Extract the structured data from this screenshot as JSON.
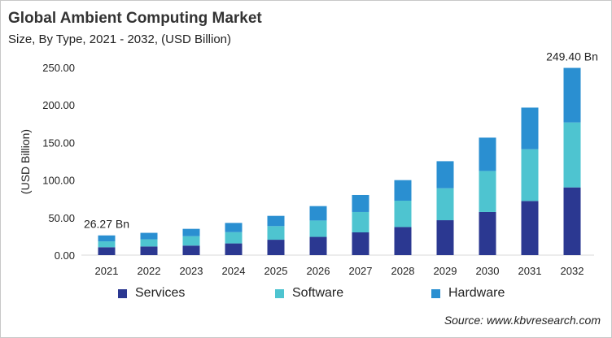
{
  "chart_data": {
    "type": "bar",
    "stacked": true,
    "title": "Global Ambient Computing Market",
    "subtitle": "Size, By Type, 2021 - 2032, (USD Billion)",
    "ylabel": "(USD Billion)",
    "xlabel": "",
    "ylim": [
      0,
      250
    ],
    "yticks": [
      "0.00",
      "50.00",
      "100.00",
      "150.00",
      "200.00",
      "250.00"
    ],
    "grid": false,
    "legend_position": "bottom",
    "categories": [
      "2021",
      "2022",
      "2023",
      "2024",
      "2025",
      "2026",
      "2027",
      "2028",
      "2029",
      "2030",
      "2031",
      "2032"
    ],
    "series": [
      {
        "name": "Services",
        "color": "#2b3891",
        "values": [
          10.5,
          11.5,
          12.7,
          15.6,
          20.5,
          24.3,
          30.3,
          37.4,
          46.5,
          57.4,
          72.1,
          90.2
        ]
      },
      {
        "name": "Software",
        "color": "#4ec4d0",
        "values": [
          7.8,
          9.5,
          12.5,
          15.0,
          18.1,
          21.8,
          27.1,
          35.1,
          42.6,
          54.7,
          68.9,
          86.5
        ]
      },
      {
        "name": "Hardware",
        "color": "#2a8fd1",
        "values": [
          7.97,
          8.7,
          9.8,
          12.3,
          13.7,
          19.2,
          22.7,
          27.4,
          36.0,
          44.4,
          55.5,
          72.7
        ]
      }
    ],
    "annotations": [
      {
        "category": "2021",
        "text": "26.27 Bn"
      },
      {
        "category": "2032",
        "text": "249.40 Bn"
      }
    ],
    "source": "Source: www.kbvresearch.com"
  }
}
